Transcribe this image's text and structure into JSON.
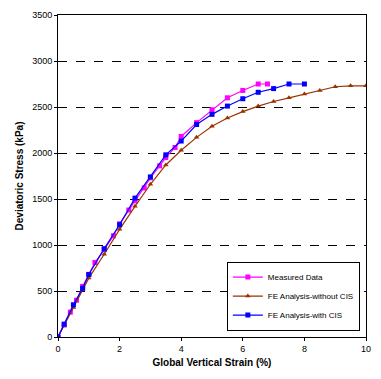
{
  "chart_data": {
    "type": "line",
    "x_label": "Global Vertical Strain (%)",
    "y_label": "Deviatoric Stress (kPa)",
    "xlim": [
      0,
      10
    ],
    "xticks": [
      0,
      2,
      4,
      6,
      8,
      10
    ],
    "ylim": [
      0,
      3500
    ],
    "yticks": [
      0,
      500,
      1000,
      1500,
      2000,
      2500,
      3000,
      3500
    ],
    "grid": true,
    "legend": "bottom right",
    "series": [
      {
        "name": "Measured Data",
        "color": "#FF00FF",
        "marker": "square",
        "line_style": "solid",
        "x": [
          0,
          0.2,
          0.4,
          0.6,
          0.8,
          1.0,
          1.2,
          1.5,
          1.8,
          2.0,
          2.3,
          2.5,
          2.8,
          3.0,
          3.3,
          3.5,
          3.8,
          4.0,
          4.5,
          5.0,
          5.5,
          6.0,
          6.5,
          6.8
        ],
        "values": [
          0,
          130,
          270,
          400,
          550,
          680,
          810,
          950,
          1100,
          1230,
          1380,
          1480,
          1620,
          1730,
          1860,
          1950,
          2060,
          2180,
          2330,
          2470,
          2600,
          2680,
          2750,
          2750
        ]
      },
      {
        "name": "FE Analysis-without CIS",
        "color": "#993300",
        "marker": "triangle-up",
        "line_style": "solid",
        "x": [
          0,
          0.2,
          0.5,
          0.8,
          1.0,
          1.5,
          2.0,
          2.5,
          3.0,
          3.5,
          4.0,
          4.5,
          5.0,
          5.5,
          6.0,
          6.5,
          7.0,
          7.5,
          8.0,
          8.5,
          9.0,
          9.5,
          10
        ],
        "values": [
          0,
          130,
          320,
          520,
          640,
          900,
          1170,
          1420,
          1660,
          1870,
          2030,
          2170,
          2290,
          2380,
          2450,
          2510,
          2560,
          2600,
          2640,
          2680,
          2720,
          2730,
          2730
        ]
      },
      {
        "name": "FE Analysis-with CIS",
        "color": "#0000FF",
        "marker": "square",
        "line_style": "solid",
        "x": [
          0,
          0.2,
          0.5,
          0.8,
          1.0,
          1.5,
          2.0,
          2.5,
          3.0,
          3.5,
          4.0,
          4.5,
          5.0,
          5.5,
          6.0,
          6.5,
          7.0,
          7.5,
          8.0
        ],
        "values": [
          0,
          140,
          350,
          530,
          680,
          960,
          1220,
          1510,
          1740,
          1980,
          2130,
          2310,
          2420,
          2510,
          2590,
          2660,
          2700,
          2750,
          2750
        ]
      }
    ]
  }
}
